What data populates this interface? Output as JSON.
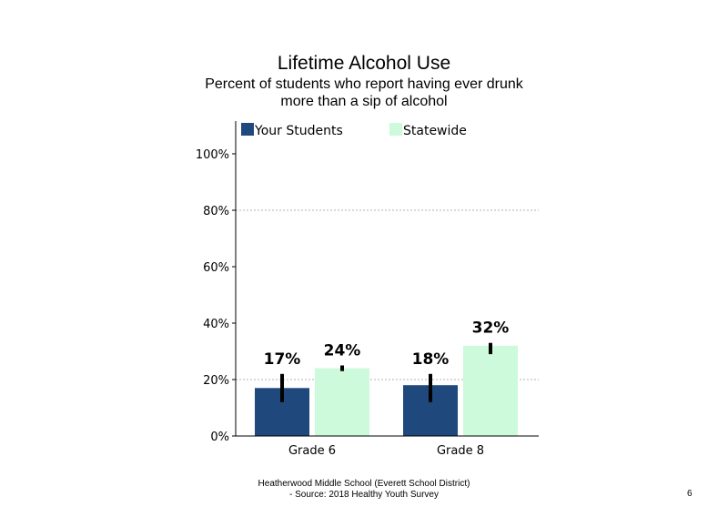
{
  "chart_data": {
    "type": "bar",
    "title": "Lifetime Alcohol Use",
    "subtitle_line1": "Percent of students who report having ever drunk",
    "subtitle_line2": "more than a sip of alcohol",
    "categories": [
      "Grade 6",
      "Grade 8"
    ],
    "series": [
      {
        "name": "Your Students",
        "color": "#1f497d",
        "values": [
          17,
          18
        ],
        "labels": [
          "17%",
          "18%"
        ],
        "error": [
          [
            12,
            22
          ],
          [
            12,
            22
          ]
        ]
      },
      {
        "name": "Statewide",
        "color": "#ccfadb",
        "values": [
          24,
          32
        ],
        "labels": [
          "24%",
          "32%"
        ],
        "error": [
          [
            23,
            25
          ],
          [
            29,
            33
          ]
        ]
      }
    ],
    "yticks": [
      "0%",
      "20%",
      "40%",
      "60%",
      "80%",
      "100%"
    ],
    "ytick_values": [
      0,
      20,
      40,
      60,
      80,
      100
    ],
    "ylim": [
      0,
      110
    ],
    "gridlines_at": [
      20,
      80
    ],
    "legend_position": "top"
  },
  "footer": {
    "line1": "Heatherwood Middle School (Everett School District)",
    "line2": "- Source: 2018 Healthy  Youth Survey"
  },
  "page_number": "6"
}
